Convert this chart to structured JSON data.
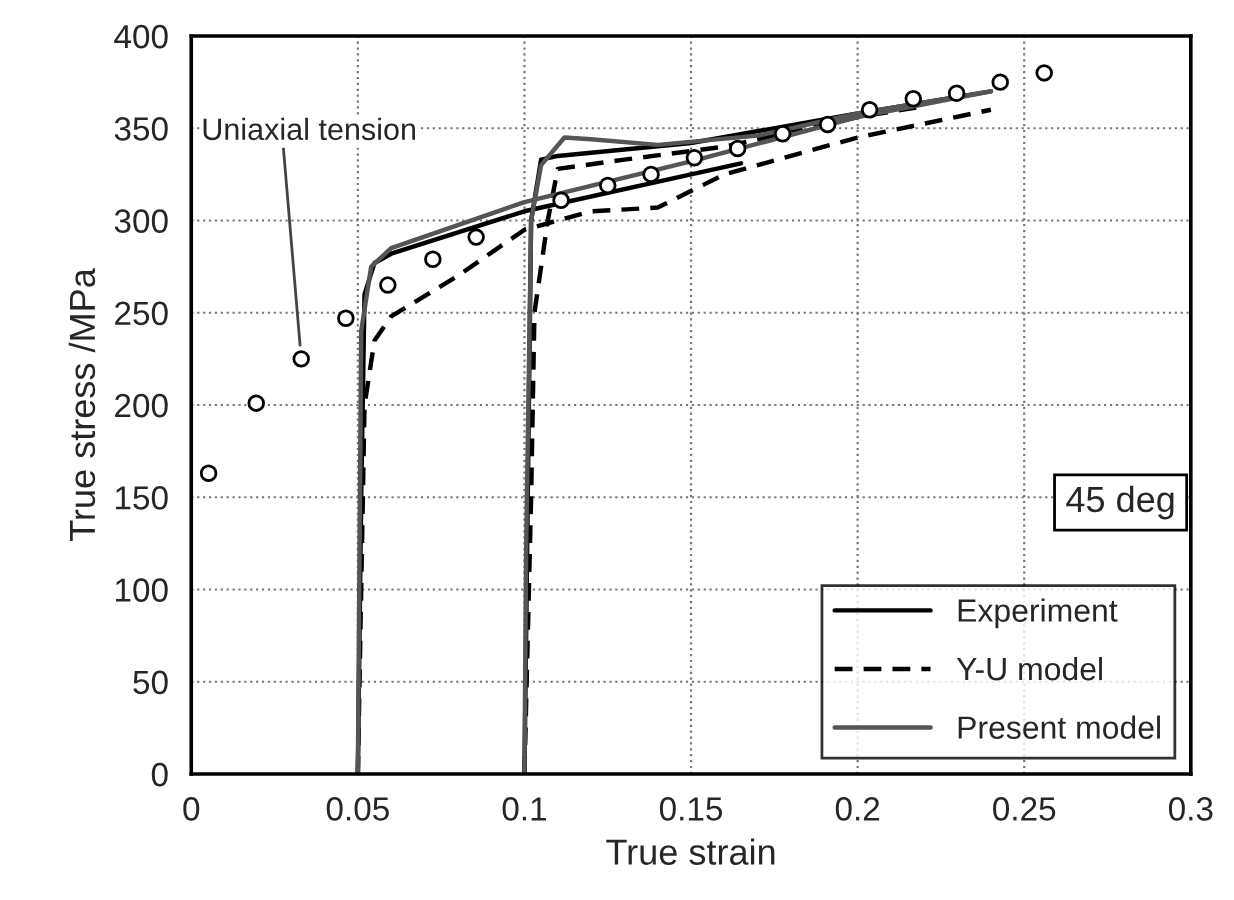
{
  "chart_data": {
    "type": "line",
    "xlabel": "True strain",
    "ylabel": "True stress /MPa",
    "xlim": [
      0,
      0.3
    ],
    "ylim": [
      0,
      400
    ],
    "xticks": [
      0,
      0.05,
      0.1,
      0.15,
      0.2,
      0.25,
      0.3
    ],
    "yticks": [
      0,
      50,
      100,
      150,
      200,
      250,
      300,
      350,
      400
    ],
    "grid": true,
    "legend": "bottom right",
    "marker": "none",
    "annotations": [
      {
        "text": "Uniaxial tension",
        "x": 0.033,
        "y": 225
      },
      "45 deg"
    ],
    "series": [
      {
        "type": "scatter",
        "marker": "circle",
        "color": "#000000",
        "x": [
          0.0052,
          0.0195,
          0.033,
          0.0464,
          0.059,
          0.0725,
          0.0855,
          0.111,
          0.125,
          0.138,
          0.151,
          0.164,
          0.1775,
          0.191,
          0.2036,
          0.2167,
          0.2297,
          0.2428,
          0.256
        ],
        "values": [
          163,
          201,
          225,
          247,
          265,
          279,
          291,
          311,
          319,
          325,
          334,
          339,
          347,
          352,
          360,
          366,
          369,
          375,
          380
        ]
      },
      {
        "name": "Experiment",
        "color": "#000000",
        "line_style": "solid",
        "x": [
          0.05,
          0.051,
          0.052,
          0.055,
          0.06,
          0.1,
          0.15,
          0.165,
          null,
          0.1,
          0.101,
          0.102,
          0.105,
          0.11,
          0.15,
          0.2,
          0.24
        ],
        "values": [
          0,
          150,
          260,
          277,
          282,
          305,
          325,
          331,
          null,
          0,
          150,
          300,
          333,
          335,
          342,
          358,
          370
        ]
      },
      {
        "name": "Y-U model",
        "color": "#000000",
        "line_style": "dashed",
        "x": [
          0.05,
          0.051,
          0.052,
          0.055,
          0.06,
          0.08,
          0.1,
          0.12,
          0.14,
          0.16,
          0.2,
          0.24,
          null,
          0.1,
          0.102,
          0.103,
          0.107,
          0.11,
          0.13,
          0.16,
          0.2,
          0.22
        ],
        "values": [
          0,
          100,
          200,
          235,
          248,
          270,
          295,
          305,
          307,
          325,
          345,
          360,
          null,
          0,
          150,
          250,
          300,
          328,
          333,
          340,
          356,
          362
        ]
      },
      {
        "name": "Present model",
        "color": "#555555",
        "line_style": "solid",
        "x": [
          0.05,
          0.0505,
          0.051,
          0.054,
          0.06,
          0.1,
          0.15,
          0.2,
          0.24,
          null,
          0.1,
          0.1005,
          0.102,
          0.105,
          0.112,
          0.12,
          0.14,
          0.17,
          0.2,
          0.24
        ],
        "values": [
          0,
          120,
          240,
          275,
          285,
          310,
          332,
          356,
          370,
          null,
          0,
          120,
          300,
          330,
          345,
          344,
          341,
          346,
          358,
          370
        ]
      }
    ]
  }
}
